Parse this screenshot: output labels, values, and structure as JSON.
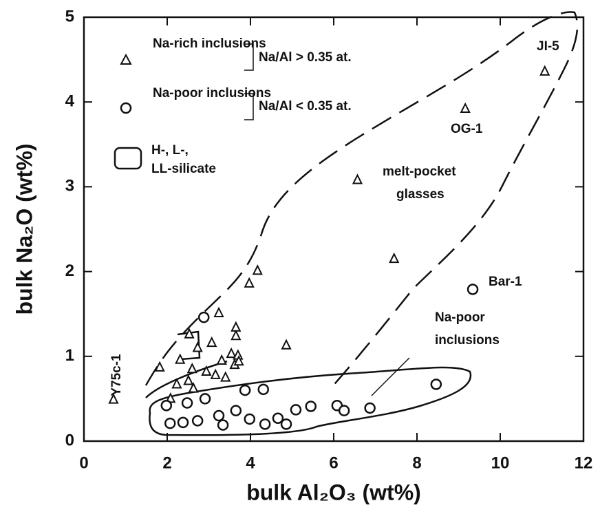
{
  "chart_data": {
    "type": "scatter",
    "xlabel": "bulk Al₂O₃ (wt%)",
    "ylabel": "bulk Na₂O (wt%)",
    "xlim": [
      0,
      12
    ],
    "ylim": [
      0,
      5
    ],
    "xticks": [
      0,
      2,
      4,
      6,
      8,
      10,
      12
    ],
    "yticks": [
      0,
      1,
      2,
      3,
      4,
      5
    ],
    "series": [
      {
        "name": "Na-rich inclusions",
        "marker": "triangle",
        "color": "#111111",
        "x": [
          0.71,
          1.82,
          2.08,
          2.23,
          2.31,
          2.53,
          2.51,
          2.6,
          2.73,
          2.63,
          2.94,
          3.07,
          3.24,
          3.16,
          3.31,
          3.4,
          3.54,
          3.65,
          3.65,
          3.7,
          3.62,
          3.72,
          3.97,
          4.17,
          4.86,
          6.57,
          7.45,
          9.16,
          11.07
        ],
        "values": [
          0.49,
          0.87,
          0.5,
          0.67,
          0.96,
          1.26,
          0.71,
          0.85,
          1.1,
          0.62,
          0.82,
          1.16,
          1.51,
          0.78,
          0.95,
          0.75,
          1.03,
          1.34,
          1.24,
          1.01,
          0.9,
          0.94,
          1.86,
          2.01,
          1.13,
          3.08,
          2.15,
          3.92,
          4.36
        ]
      },
      {
        "name": "Na-poor inclusions",
        "marker": "circle",
        "color": "#111111",
        "x": [
          2.88,
          1.98,
          2.07,
          2.38,
          2.48,
          2.73,
          2.91,
          3.24,
          3.34,
          3.65,
          3.87,
          3.98,
          4.31,
          4.35,
          4.66,
          4.86,
          5.09,
          5.45,
          6.08,
          6.25,
          6.87,
          8.46,
          9.34
        ],
        "values": [
          1.46,
          0.42,
          0.21,
          0.22,
          0.45,
          0.24,
          0.5,
          0.3,
          0.19,
          0.36,
          0.6,
          0.26,
          0.61,
          0.2,
          0.27,
          0.2,
          0.37,
          0.41,
          0.42,
          0.36,
          0.39,
          0.67,
          1.79
        ]
      }
    ],
    "legend_notes": [
      "Na/Al > 0.35 at.",
      "Na/Al < 0.35 at."
    ],
    "legend_region": [
      "H-, L-,",
      "LL-silicate"
    ],
    "annotations": [
      "JI-5",
      "OG-1",
      "Bar-1",
      "Y75c-1",
      "melt-pocket",
      "glasses",
      "Na-poor",
      "inclusions"
    ]
  }
}
